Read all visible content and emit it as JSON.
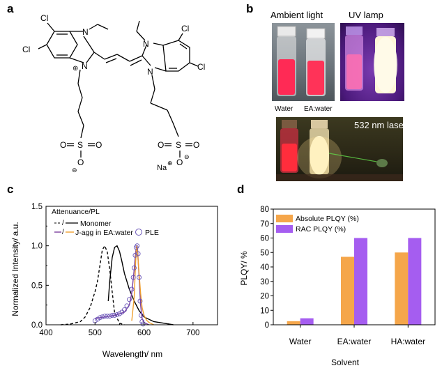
{
  "panels": {
    "a": "a",
    "b": "b",
    "c": "c",
    "d": "d"
  },
  "structure": {
    "atoms": {
      "cl1": "Cl",
      "cl2": "Cl",
      "cl3": "Cl",
      "cl4": "Cl",
      "n1": "N",
      "n2": "N",
      "n3": "N",
      "n4": "N",
      "s1": "S",
      "s2": "S",
      "o1": "O",
      "o2": "O",
      "o3": "O",
      "o4": "O",
      "o5": "O",
      "o6": "O",
      "na": "Na",
      "plus": "⊕",
      "minus": "⊖"
    }
  },
  "photos": {
    "ambient_label": "Ambient light",
    "uv_label": "UV lamp",
    "vial_left": "Water",
    "vial_right": "EA:water",
    "laser_label": "532 nm laser",
    "colors": {
      "ambient_bg": "#6e7c86",
      "uv_bg": "#5b1e8c",
      "laser_bg": "#2d2a1a",
      "vial_red": "#ff2a55",
      "uv_glow": "#fff4d0",
      "uv_red": "#ff4fa0"
    }
  },
  "chart_c": {
    "type": "line",
    "xlabel": "Wavelength/ nm",
    "ylabel": "Normalized Intensity/ a.u.",
    "xlim": [
      400,
      750
    ],
    "ylim": [
      0,
      1.5
    ],
    "xticks": [
      "400",
      "500",
      "600",
      "700"
    ],
    "yticks": [
      "0.0",
      "0.5",
      "1.0",
      "1.5"
    ],
    "legend_title": "Attenuance/PL",
    "legend": [
      {
        "marker": "-/-",
        "name": "Monomer"
      },
      {
        "marker": "—/—",
        "name": "J-agg in EA:water"
      },
      {
        "marker": "○",
        "name": "PLE"
      }
    ],
    "colors": {
      "monomer": "#000000",
      "jagg_att": "#7b3f9e",
      "jagg_pl": "#f0a030",
      "ple": "#6a55b8"
    }
  },
  "chart_data": [
    {
      "type": "line",
      "xlabel": "Wavelength/ nm",
      "ylabel": "Normalized Intensity/ a.u.",
      "xlim": [
        400,
        750
      ],
      "ylim": [
        0,
        1.5
      ],
      "series": [
        {
          "name": "Monomer",
          "style": "dashed",
          "x": [
            430,
            450,
            470,
            480,
            490,
            500,
            505,
            510,
            515,
            520,
            525,
            530,
            535,
            540,
            550,
            560
          ],
          "y": [
            0.0,
            0.01,
            0.04,
            0.1,
            0.22,
            0.42,
            0.55,
            0.75,
            0.95,
            1.0,
            0.92,
            0.7,
            0.42,
            0.15,
            0.02,
            0.0
          ]
        },
        {
          "name": "Monomer",
          "style": "solid",
          "x": [
            527,
            530,
            535,
            540,
            545,
            550,
            555,
            560,
            570,
            580,
            590,
            600,
            620,
            640,
            660
          ],
          "y": [
            0.3,
            0.55,
            0.85,
            0.98,
            1.0,
            0.93,
            0.8,
            0.65,
            0.45,
            0.3,
            0.18,
            0.1,
            0.04,
            0.02,
            0.0
          ]
        },
        {
          "name": "J-agg in EA:water",
          "style": "solid",
          "x": [
            500,
            520,
            540,
            560,
            570,
            575,
            580,
            583,
            585,
            587,
            590,
            593,
            596,
            600,
            610
          ],
          "y": [
            0.08,
            0.1,
            0.12,
            0.16,
            0.25,
            0.4,
            0.7,
            0.92,
            1.0,
            0.95,
            0.6,
            0.25,
            0.08,
            0.03,
            0.0
          ]
        },
        {
          "name": "J-agg in EA:water",
          "style": "solid",
          "x": [
            575,
            580,
            583,
            585,
            587,
            590,
            593,
            596,
            600,
            605,
            610,
            620
          ],
          "y": [
            0.05,
            0.35,
            0.8,
            1.0,
            0.9,
            0.65,
            0.4,
            0.22,
            0.12,
            0.06,
            0.03,
            0.0
          ]
        },
        {
          "name": "PLE",
          "style": "markers",
          "x": [
            500,
            505,
            510,
            515,
            520,
            525,
            530,
            535,
            540,
            545,
            550,
            555,
            560,
            565,
            570,
            575,
            578,
            580,
            582,
            584,
            586,
            588,
            590,
            592,
            594,
            596,
            598
          ],
          "y": [
            0.05,
            0.07,
            0.09,
            0.1,
            0.11,
            0.11,
            0.11,
            0.12,
            0.12,
            0.13,
            0.14,
            0.16,
            0.19,
            0.24,
            0.32,
            0.45,
            0.6,
            0.72,
            0.88,
            0.98,
            1.0,
            0.9,
            0.6,
            0.3,
            0.12,
            0.04,
            0.01
          ]
        }
      ]
    },
    {
      "type": "bar",
      "xlabel": "Solvent",
      "ylabel": "PLQY/ %",
      "ylim": [
        0,
        80
      ],
      "categories": [
        "Water",
        "EA:water",
        "HA:water"
      ],
      "yticks": [
        "0",
        "10",
        "20",
        "30",
        "40",
        "50",
        "60",
        "70",
        "80"
      ],
      "series": [
        {
          "name": "Absolute PLQY (%)",
          "color": "#f5a64a",
          "values": [
            2.5,
            47,
            50
          ]
        },
        {
          "name": "RAC PLQY (%)",
          "color": "#a55df0",
          "values": [
            4.5,
            60,
            60
          ]
        }
      ]
    }
  ]
}
